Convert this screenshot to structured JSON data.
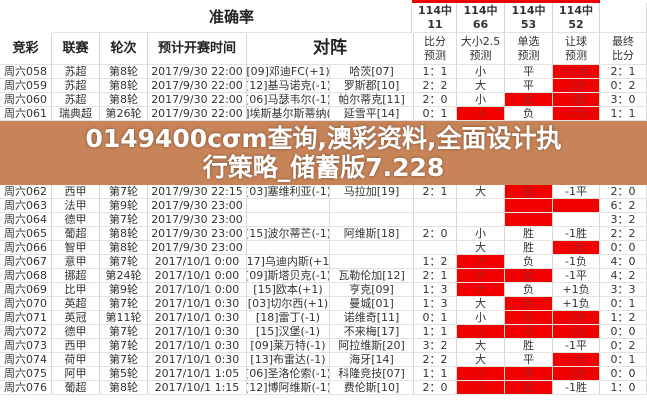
{
  "header": {
    "accuracy_label": "准确率",
    "columns": [
      "竞彩",
      "联赛",
      "轮次",
      "预计开赛时间",
      "对阵"
    ],
    "stats": [
      {
        "line1": "114中",
        "line2": "11",
        "label1": "比分",
        "label2": "预测"
      },
      {
        "line1": "114中",
        "line2": "66",
        "label1": "大小2.5",
        "label2": "预测"
      },
      {
        "line1": "114中",
        "line2": "53",
        "label1": "单选",
        "label2": "预测"
      },
      {
        "line1": "114中",
        "line2": "52",
        "label1": "让球",
        "label2": "预测"
      },
      {
        "line1": "",
        "line2": "",
        "label1": "最终",
        "label2": "比分"
      }
    ]
  },
  "colors": {
    "highlight": "#f20000",
    "overlay": "#be6e3c"
  },
  "rows": [
    [
      "周六058",
      "苏超",
      "第8轮",
      "2017/9/30 22:00",
      "[09]邓迪FC(+1)",
      "哈茨[07]",
      "1：1",
      "小",
      "平",
      "+1胜",
      "2：1",
      [
        3
      ]
    ],
    [
      "周六059",
      "苏超",
      "第8轮",
      "2017/9/30 22:00",
      "[12]基马诺克(-1)",
      "罗斯郡[10]",
      "2：2",
      "大",
      "平",
      "-1负",
      "0：2",
      [
        3
      ]
    ],
    [
      "周六060",
      "苏超",
      "第8轮",
      "2017/9/30 22:00",
      "[06]马瑟韦尔(-1)",
      "帕尔蒂克[11]",
      "2：0",
      "小",
      "胜",
      "-1胜",
      "3：0",
      [
        2,
        3
      ]
    ],
    [
      "周六061",
      "瑞典超",
      "第26轮",
      "2017/9/30 22:00",
      "]埃斯基尔斯蒂纳(",
      "延雪平[14]",
      "0：1",
      "小",
      "负",
      "-1负",
      "1：1",
      [
        1,
        3
      ]
    ],
    [
      "周六062",
      "西甲",
      "第7轮",
      "2017/9/30 22:15",
      "[03]塞维利亚(-1)",
      "马拉加[19]",
      "2：1",
      "大",
      "胜",
      "-1平",
      "2：0",
      [
        2
      ]
    ],
    [
      "周六063",
      "法甲",
      "第9轮",
      "2017/9/30 23:00",
      "",
      "",
      "",
      "",
      "",
      "",
      "6：2",
      [
        2,
        3
      ]
    ],
    [
      "周六064",
      "德甲",
      "第7轮",
      "2017/9/30 23:00",
      "",
      "",
      "",
      "",
      "",
      "",
      "3：2",
      [
        2
      ]
    ],
    [
      "周六065",
      "葡超",
      "第8轮",
      "2017/9/30 23:00",
      "[15]波尔蒂芒(-1)",
      "阿维斯[18]",
      "2：0",
      "小",
      "胜",
      "-1胜",
      "2：2",
      []
    ],
    [
      "周六066",
      "智甲",
      "第8轮",
      "2017/9/30 23:00",
      "",
      "",
      "",
      "大",
      "胜",
      "-1胜",
      "0：0",
      [
        3
      ]
    ],
    [
      "周六067",
      "意甲",
      "第7轮",
      "2017/10/1 0:00",
      "[17]乌迪内斯(+1)",
      "",
      "1：2",
      "大",
      "负",
      "-1负",
      "4：0",
      [
        1
      ]
    ],
    [
      "周六068",
      "挪超",
      "第24轮",
      "2017/10/1 0:00",
      "[09]斯塔贝克(-1)",
      "瓦勒伦加[12]",
      "2：1",
      "大",
      "胜",
      "-1平",
      "4：2",
      [
        1,
        2
      ]
    ],
    [
      "周六069",
      "比甲",
      "第9轮",
      "2017/10/1 0:00",
      "[15]欧本(+1)",
      "亨克[09]",
      "1：3",
      "大",
      "负",
      "+1负",
      "3：3",
      [
        1
      ]
    ],
    [
      "周六070",
      "英超",
      "第7轮",
      "2017/10/1 0:30",
      "[03]切尔西(+1)",
      "曼城[01]",
      "1：3",
      "大",
      "负",
      "+1负",
      "0：1",
      [
        2
      ]
    ],
    [
      "周六071",
      "英冠",
      "第11轮",
      "2017/10/1 0:30",
      "[18]雷丁(-1)",
      "诺维奇[11]",
      "0：1",
      "小",
      "负",
      "-1负",
      "1：2",
      [
        2,
        3
      ]
    ],
    [
      "周六072",
      "德甲",
      "第7轮",
      "2017/10/1 0:30",
      "[15]汉堡(-1)",
      "不来梅[17]",
      "1：1",
      "小",
      "平",
      "-1负",
      "0：0",
      [
        1,
        2,
        3
      ]
    ],
    [
      "周六073",
      "西甲",
      "第7轮",
      "2017/10/1 0:30",
      "[09]莱万特(-1)",
      "阿拉维斯[20]",
      "3：2",
      "大",
      "胜",
      "-1平",
      "0：2",
      []
    ],
    [
      "周六074",
      "荷甲",
      "第7轮",
      "2017/10/1 0:30",
      "[13]布雷达(-1)",
      "海牙[14]",
      "2：2",
      "大",
      "平",
      "-1负",
      "0：1",
      [
        3
      ]
    ],
    [
      "周六075",
      "阿甲",
      "第5轮",
      "2017/10/1 1:05",
      "[06]圣洛伦索(-1)",
      "科隆竞技[07]",
      "1：1",
      "小",
      "平",
      "-1负",
      "0：0",
      [
        1,
        2,
        3
      ]
    ],
    [
      "周六076",
      "葡超",
      "第8轮",
      "2017/10/1 1:15",
      "[12]博阿维斯(-1)",
      "费伦斯[10]",
      "2：0",
      "小",
      "胜",
      "-1胜",
      "1：0",
      [
        1,
        2
      ]
    ]
  ],
  "overlay": {
    "line1": "0149400cσm查询,澳彩资料,全面设计执",
    "line2": "行策略_储蓄版7.228"
  }
}
